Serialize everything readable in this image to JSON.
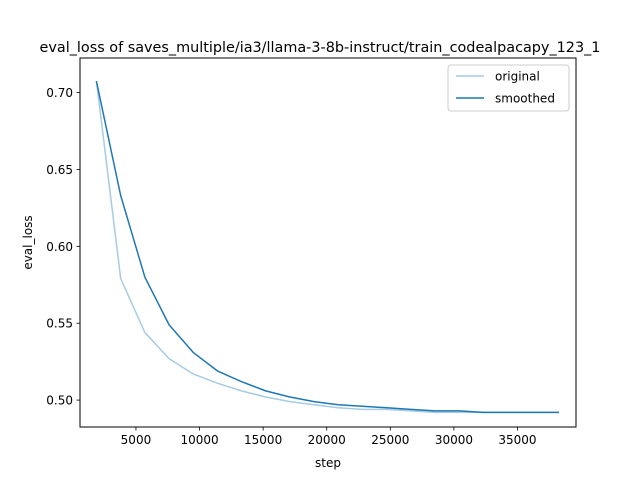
{
  "chart_data": {
    "type": "line",
    "title": "eval_loss of saves_multiple/ia3/llama-3-8b-instruct/train_codealpacapy_123_1",
    "xlabel": "step",
    "ylabel": "eval_loss",
    "xlim": [
      600,
      39600
    ],
    "ylim": [
      0.4825,
      0.7225
    ],
    "xticks": [
      5000,
      10000,
      15000,
      20000,
      25000,
      30000,
      35000
    ],
    "xtick_labels": [
      "5000",
      "10000",
      "15000",
      "20000",
      "25000",
      "30000",
      "35000"
    ],
    "yticks": [
      0.5,
      0.55,
      0.6,
      0.65,
      0.7
    ],
    "ytick_labels": [
      "0.50",
      "0.55",
      "0.60",
      "0.65",
      "0.70"
    ],
    "grid": false,
    "legend_position": "top-right",
    "series": [
      {
        "name": "original",
        "color": "#a6cbe3",
        "x": [
          1900,
          3800,
          5700,
          7600,
          9500,
          11400,
          13300,
          15200,
          17100,
          19000,
          20900,
          22800,
          24700,
          26600,
          28500,
          30400,
          32300,
          34200,
          36100,
          38200
        ],
        "y": [
          0.707,
          0.579,
          0.544,
          0.527,
          0.517,
          0.511,
          0.506,
          0.502,
          0.499,
          0.497,
          0.495,
          0.494,
          0.494,
          0.493,
          0.492,
          0.492,
          0.492,
          0.492,
          0.492,
          0.492
        ]
      },
      {
        "name": "smoothed",
        "color": "#1f77b4",
        "x": [
          1900,
          3800,
          5700,
          7600,
          9500,
          11400,
          13300,
          15200,
          17100,
          19000,
          20900,
          22800,
          24700,
          26600,
          28500,
          30400,
          32300,
          34200,
          36100,
          38200
        ],
        "y": [
          0.707,
          0.633,
          0.58,
          0.549,
          0.531,
          0.519,
          0.512,
          0.506,
          0.502,
          0.499,
          0.497,
          0.496,
          0.495,
          0.494,
          0.493,
          0.493,
          0.492,
          0.492,
          0.492,
          0.492
        ]
      }
    ]
  }
}
